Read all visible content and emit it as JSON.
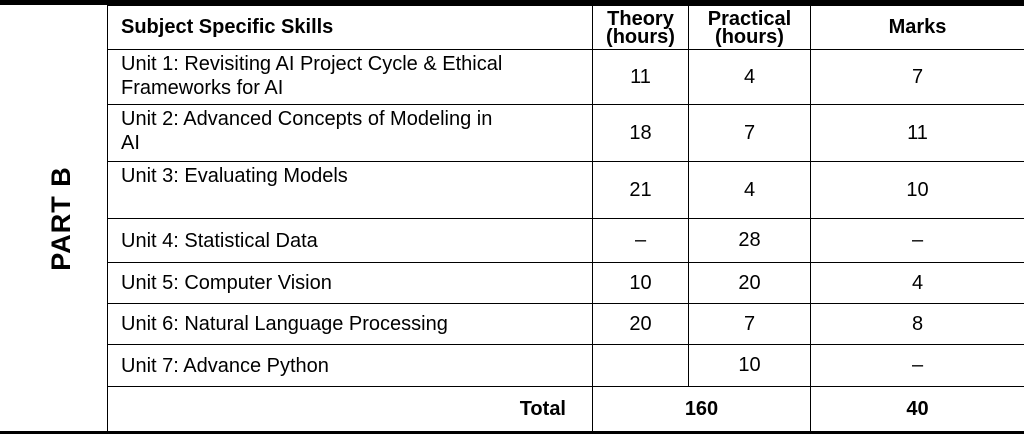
{
  "part_label": "PART B",
  "headers": {
    "skill": "Subject Specific Skills",
    "theory_line1": "Theory",
    "theory_line2": "(hours)",
    "practical_line1": "Practical",
    "practical_line2": "(hours)",
    "marks": "Marks"
  },
  "rows": [
    {
      "unit_line1": "Unit 1: Revisiting AI Project Cycle & Ethical",
      "unit_line2": "Frameworks for AI",
      "theory": "11",
      "practical": "4",
      "marks": "7"
    },
    {
      "unit_line1": "Unit 2: Advanced Concepts of Modeling in",
      "unit_line2": "AI",
      "theory": "18",
      "practical": "7",
      "marks": "11"
    },
    {
      "unit_line1": "Unit 3: Evaluating Models",
      "unit_line2": "",
      "theory": "21",
      "practical": "4",
      "marks": "10"
    },
    {
      "unit_line1": "Unit 4: Statistical Data",
      "unit_line2": "",
      "theory": "–",
      "practical": "28",
      "marks": "–"
    },
    {
      "unit_line1": "Unit 5: Computer Vision",
      "unit_line2": "",
      "theory": "10",
      "practical": "20",
      "marks": "4"
    },
    {
      "unit_line1": "Unit 6: Natural Language Processing",
      "unit_line2": "",
      "theory": "20",
      "practical": "7",
      "marks": "8"
    },
    {
      "unit_line1": "Unit 7: Advance Python",
      "unit_line2": "",
      "theory": "",
      "practical": "10",
      "marks": "–"
    }
  ],
  "total": {
    "label": "Total",
    "hours": "160",
    "marks": "40"
  }
}
